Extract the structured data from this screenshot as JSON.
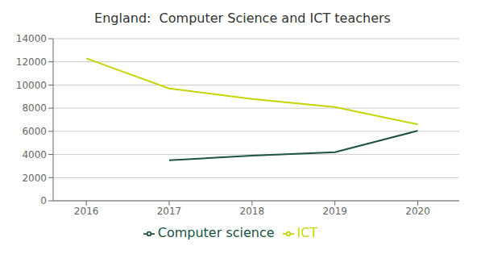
{
  "chart_data": {
    "type": "line",
    "title": "England:  Computer Science and ICT teachers",
    "x": [
      2016,
      2017,
      2018,
      2019,
      2020
    ],
    "series": [
      {
        "name": "Computer science",
        "color": "#1a5244",
        "values": [
          null,
          3500,
          3900,
          4200,
          6050
        ]
      },
      {
        "name": "ICT",
        "color": "#c8d400",
        "values": [
          12300,
          9700,
          8800,
          8100,
          6600
        ]
      }
    ],
    "xlim": [
      2015.6,
      2020.5
    ],
    "xticks": [
      2016,
      2017,
      2018,
      2019,
      2020
    ],
    "ylim": [
      0,
      14000
    ],
    "yticks": [
      0,
      2000,
      4000,
      6000,
      8000,
      10000,
      12000,
      14000
    ],
    "grid": true,
    "legend": "bottom"
  }
}
